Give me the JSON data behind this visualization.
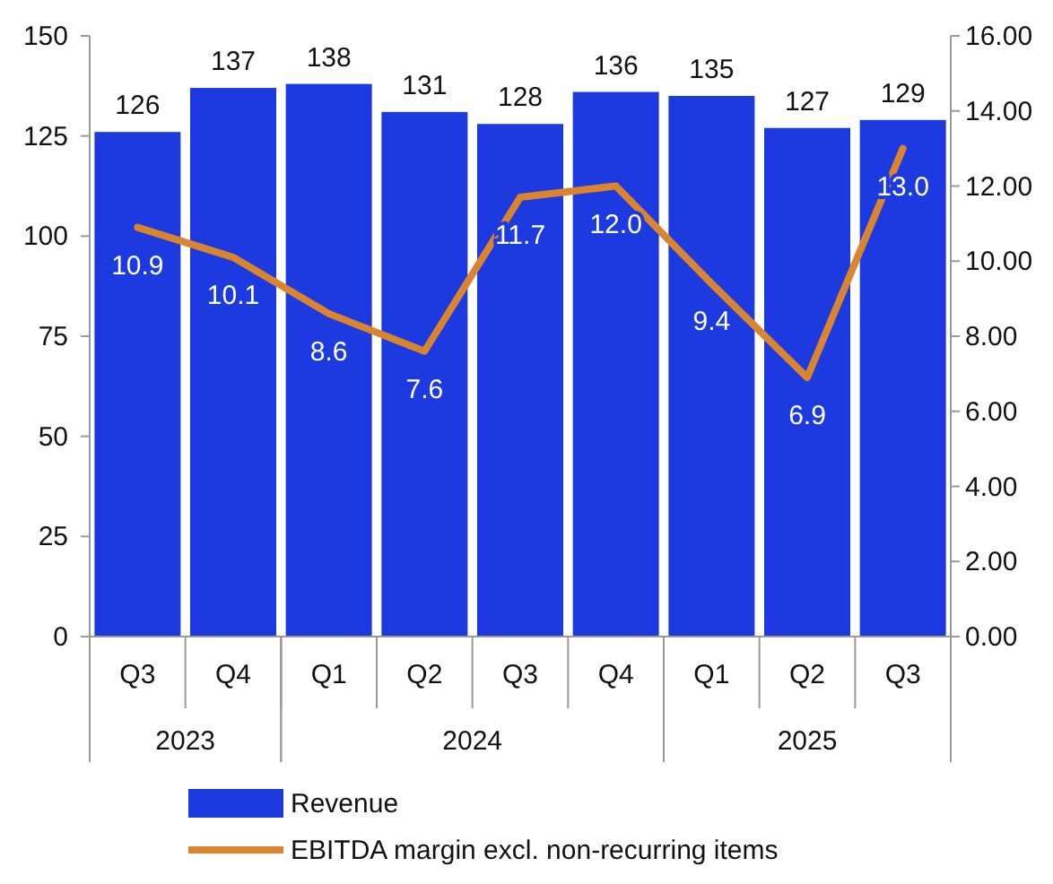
{
  "chart_data": {
    "type": "bar",
    "categories": [
      "Q3",
      "Q4",
      "Q1",
      "Q2",
      "Q3",
      "Q4",
      "Q1",
      "Q2",
      "Q3"
    ],
    "series": [
      {
        "name": "Revenue",
        "color": "#1c3ae0",
        "values": [
          126,
          137,
          138,
          131,
          128,
          136,
          135,
          127,
          129
        ]
      },
      {
        "name": "EBITDA margin excl. non-recurring items",
        "type": "line",
        "axis": "y2",
        "color": "#d9852f",
        "values": [
          10.9,
          10.1,
          8.6,
          7.6,
          11.7,
          12.0,
          9.4,
          6.9,
          13.0
        ],
        "value_labels": [
          "10.9",
          "10.1",
          "8.6",
          "7.6",
          "11.7",
          "12.0",
          "9.4",
          "6.9",
          "13.0"
        ]
      }
    ],
    "ylim": [
      0,
      150
    ],
    "yticks": [
      0,
      25,
      50,
      75,
      100,
      125,
      150
    ],
    "y2lim": [
      0,
      16
    ],
    "y2ticks": [
      {
        "value": 0,
        "label": "0.00"
      },
      {
        "value": 2,
        "label": "2.00"
      },
      {
        "value": 4,
        "label": "4.00"
      },
      {
        "value": 6,
        "label": "6.00"
      },
      {
        "value": 8,
        "label": "8.00"
      },
      {
        "value": 10,
        "label": "10.00"
      },
      {
        "value": 12,
        "label": "12.00"
      },
      {
        "value": 14,
        "label": "14.00"
      },
      {
        "value": 16,
        "label": "16.00"
      }
    ],
    "data_labels": true,
    "legend": "bottom",
    "annotations": [
      "2023",
      "2024",
      "2025"
    ]
  }
}
